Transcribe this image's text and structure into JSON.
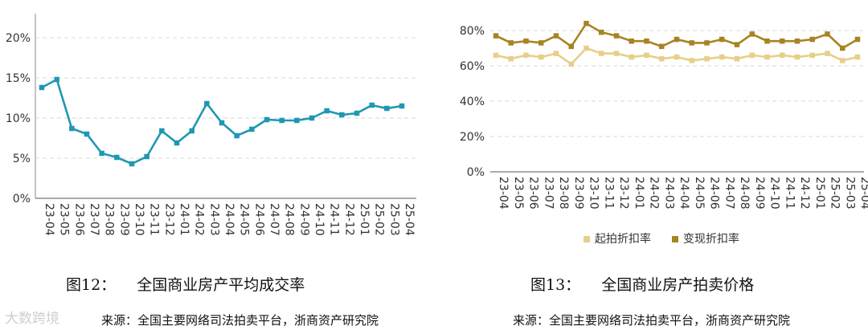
{
  "watermark": "大数跨境",
  "chart_data": [
    {
      "type": "line",
      "x": [
        "23-04",
        "23-05",
        "23-06",
        "23-07",
        "23-08",
        "23-09",
        "23-10",
        "23-11",
        "23-12",
        "24-01",
        "24-02",
        "24-03",
        "24-04",
        "24-05",
        "24-06",
        "24-07",
        "24-08",
        "24-09",
        "24-10",
        "24-11",
        "24-12",
        "25-01",
        "25-02",
        "25-03",
        "25-04"
      ],
      "series": [
        {
          "name": "",
          "color": "#1f97b3",
          "values": [
            13.8,
            14.8,
            8.7,
            8.0,
            5.6,
            5.1,
            4.3,
            5.2,
            8.4,
            6.9,
            8.4,
            11.8,
            9.4,
            7.8,
            8.6,
            9.8,
            9.7,
            9.7,
            10.0,
            10.9,
            10.4,
            10.6,
            11.6,
            11.2,
            11.5
          ]
        }
      ],
      "ylim": [
        0,
        22
      ],
      "yticks": [
        "0%",
        "5%",
        "10%",
        "15%",
        "20%"
      ],
      "ytick_values": [
        0,
        5,
        10,
        15,
        20
      ],
      "grid": true,
      "title": "",
      "xlabel": "",
      "ylabel": ""
    },
    {
      "type": "line",
      "x": [
        "23-04",
        "23-05",
        "23-06",
        "23-07",
        "23-08",
        "23-09",
        "23-10",
        "23-11",
        "23-12",
        "24-01",
        "24-02",
        "24-03",
        "24-04",
        "24-05",
        "24-06",
        "24-07",
        "24-08",
        "24-09",
        "24-10",
        "24-11",
        "24-12",
        "25-01",
        "25-02",
        "25-03",
        "25-04"
      ],
      "series": [
        {
          "name": "起拍折扣率",
          "color": "#e6cf8a",
          "values": [
            66,
            64,
            66,
            65,
            67,
            61,
            70,
            67,
            67,
            65,
            66,
            64,
            65,
            63,
            64,
            65,
            64,
            66,
            65,
            66,
            65,
            66,
            67,
            63,
            65
          ]
        },
        {
          "name": "变现折扣率",
          "color": "#a88322",
          "values": [
            77,
            73,
            74,
            73,
            77,
            71,
            84,
            79,
            77,
            74,
            74,
            71,
            75,
            73,
            73,
            75,
            72,
            78,
            74,
            74,
            74,
            75,
            78,
            70,
            75
          ]
        }
      ],
      "ylim": [
        0,
        85
      ],
      "yticks": [
        "0%",
        "20%",
        "40%",
        "60%",
        "80%"
      ],
      "ytick_values": [
        0,
        20,
        40,
        60,
        80
      ],
      "grid": true,
      "legend": "bottom",
      "title": "",
      "xlabel": "",
      "ylabel": ""
    }
  ],
  "captions": {
    "left": {
      "num": "图12：",
      "title": "全国商业房产平均成交率"
    },
    "right": {
      "num": "图13：",
      "title": "全国商业房产拍卖价格"
    }
  },
  "sources": {
    "left": "来源：全国主要网络司法拍卖平台，浙商资产研究院",
    "right": "来源：全国主要网络司法拍卖平台，浙商资产研究院"
  }
}
